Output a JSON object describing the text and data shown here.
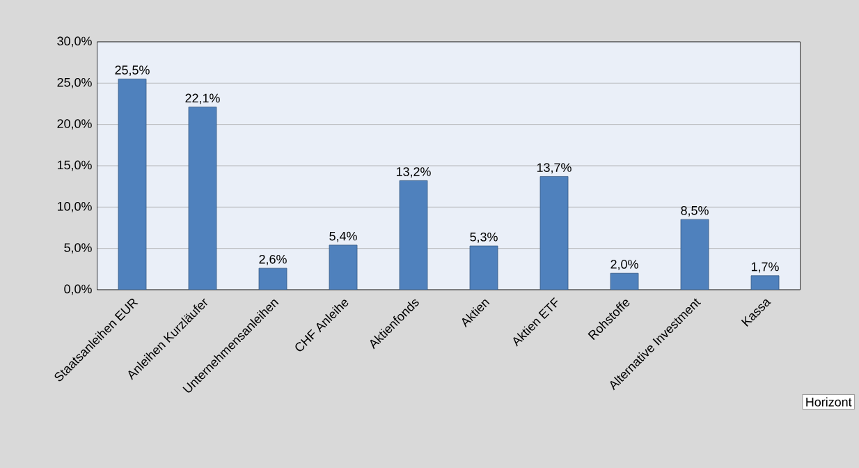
{
  "chart_data": {
    "type": "bar",
    "categories": [
      "Staatsanleihen EUR",
      "Anleihen Kurzläufer",
      "Unternehmensanleihen",
      "CHF Anleihe",
      "Aktienfonds",
      "Aktien",
      "Aktien ETF",
      "Rohstoffe",
      "Alternative Investment",
      "Kassa"
    ],
    "values": [
      25.5,
      22.1,
      2.6,
      5.4,
      13.2,
      5.3,
      13.7,
      2.0,
      8.5,
      1.7
    ],
    "value_labels": [
      "25,5%",
      "22,1%",
      "2,6%",
      "5,4%",
      "13,2%",
      "5,3%",
      "13,7%",
      "2,0%",
      "8,5%",
      "1,7%"
    ],
    "color": "#4f81bd",
    "ylim": [
      0,
      30
    ],
    "yticks": [
      {
        "value": 0,
        "label": "0,0%"
      },
      {
        "value": 5,
        "label": "5,0%"
      },
      {
        "value": 10,
        "label": "10,0%"
      },
      {
        "value": 15,
        "label": "15,0%"
      },
      {
        "value": 20,
        "label": "20,0%"
      },
      {
        "value": 25,
        "label": "25,0%"
      },
      {
        "value": 30,
        "label": "30,0%"
      }
    ],
    "grid": "y",
    "annotations": [
      "Horizont"
    ]
  }
}
